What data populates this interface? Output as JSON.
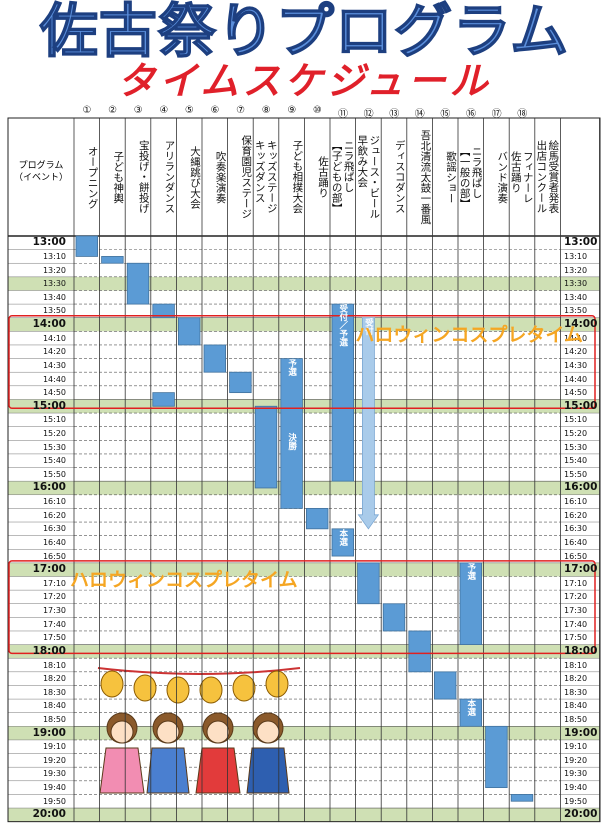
{
  "header": {
    "title": "佐古祭りプログラム",
    "subtitle": "タイムスケジュール",
    "program_label": "プログラム\n（イベント）"
  },
  "events": [
    {
      "number": "①",
      "name": "オープニング",
      "sessions": [
        {
          "start": "13:00",
          "end": "13:15"
        }
      ]
    },
    {
      "number": "②",
      "name": "子ども神輿",
      "sessions": [
        {
          "start": "13:15",
          "end": "13:20"
        }
      ]
    },
    {
      "number": "③",
      "name": "宝投げ・餅投げ",
      "sessions": [
        {
          "start": "13:20",
          "end": "13:50"
        }
      ]
    },
    {
      "number": "④",
      "name": "アリランダンス",
      "sessions": [
        {
          "start": "13:50",
          "end": "14:00"
        },
        {
          "start": "14:55",
          "end": "15:05"
        }
      ]
    },
    {
      "number": "⑤",
      "name": "大縄跳び大会",
      "sessions": [
        {
          "start": "14:00",
          "end": "14:20"
        }
      ]
    },
    {
      "number": "⑥",
      "name": "吹奏楽演奏",
      "sessions": [
        {
          "start": "14:20",
          "end": "14:40"
        }
      ]
    },
    {
      "number": "⑦",
      "name": "保育園児ステージ",
      "sessions": [
        {
          "start": "14:40",
          "end": "14:55"
        }
      ]
    },
    {
      "number": "⑧",
      "name": "キッズステージ\nキッズダンス",
      "sessions": [
        {
          "start": "15:05",
          "end": "16:05"
        }
      ]
    },
    {
      "number": "⑨",
      "name": "子ども相撲大会",
      "sessions": [
        {
          "start": "14:30",
          "end": "16:20",
          "labels": [
            "予選",
            "決勝"
          ]
        }
      ]
    },
    {
      "number": "⑩",
      "name": "佐古踊り",
      "sessions": [
        {
          "start": "16:20",
          "end": "16:35"
        }
      ]
    },
    {
      "number": "⑪",
      "name": "ニラ飛ばし\n【子どもの部】",
      "sessions": [
        {
          "start": "13:50",
          "end": "16:00",
          "labels": [
            "受付／予選"
          ]
        },
        {
          "start": "16:35",
          "end": "16:55",
          "labels": [
            "本選"
          ]
        }
      ]
    },
    {
      "number": "⑫",
      "name": "ジュース・ビール\n早飲み大会",
      "sessions": [
        {
          "start": "14:00",
          "end": "16:35",
          "labels": [
            "受付"
          ],
          "shape": "arrow"
        },
        {
          "start": "17:00",
          "end": "17:30"
        }
      ]
    },
    {
      "number": "⑬",
      "name": "ディスコダンス",
      "sessions": [
        {
          "start": "17:30",
          "end": "17:50"
        }
      ]
    },
    {
      "number": "⑭",
      "name": "吾北清流太鼓一番風",
      "sessions": [
        {
          "start": "17:50",
          "end": "18:20"
        }
      ]
    },
    {
      "number": "⑮",
      "name": "歌謡ショー",
      "sessions": [
        {
          "start": "18:20",
          "end": "18:40"
        }
      ]
    },
    {
      "number": "⑯",
      "name": "ニラ飛ばし\n【一般の部】",
      "sessions": [
        {
          "start": "17:00",
          "end": "18:00",
          "labels": [
            "予選"
          ]
        },
        {
          "start": "18:40",
          "end": "19:00",
          "labels": [
            "本選"
          ]
        }
      ]
    },
    {
      "number": "⑰",
      "name": "バンド演奏",
      "sessions": [
        {
          "start": "19:00",
          "end": "19:45"
        }
      ]
    },
    {
      "number": "⑱",
      "name": "フィナーレ\n佐古踊り",
      "sessions": [
        {
          "start": "19:50",
          "end": "19:55"
        }
      ]
    },
    {
      "name": "絵馬受賞者発表\n出店コンクール",
      "sessions": []
    }
  ],
  "rows": [
    {
      "time": "13:00",
      "highlight": false
    },
    {
      "time": "13:10",
      "highlight": false
    },
    {
      "time": "13:20",
      "highlight": false
    },
    {
      "time": "13:30",
      "highlight": true
    },
    {
      "time": "13:40",
      "highlight": false
    },
    {
      "time": "13:50",
      "highlight": false
    },
    {
      "time": "14:00",
      "highlight": true
    },
    {
      "time": "14:10",
      "highlight": false
    },
    {
      "time": "14:20",
      "highlight": false
    },
    {
      "time": "14:30",
      "highlight": false
    },
    {
      "time": "14:40",
      "highlight": false
    },
    {
      "time": "14:50",
      "highlight": false
    },
    {
      "time": "15:00",
      "highlight": true
    },
    {
      "time": "15:10",
      "highlight": false
    },
    {
      "time": "15:20",
      "highlight": false
    },
    {
      "time": "15:30",
      "highlight": false
    },
    {
      "time": "15:40",
      "highlight": false
    },
    {
      "time": "15:50",
      "highlight": false
    },
    {
      "time": "16:00",
      "highlight": true
    },
    {
      "time": "16:10",
      "highlight": false
    },
    {
      "time": "16:20",
      "highlight": false
    },
    {
      "time": "16:30",
      "highlight": false
    },
    {
      "time": "16:40",
      "highlight": false
    },
    {
      "time": "16:50",
      "highlight": false
    },
    {
      "time": "17:00",
      "highlight": true
    },
    {
      "time": "17:10",
      "highlight": false
    },
    {
      "time": "17:20",
      "highlight": false
    },
    {
      "time": "17:30",
      "highlight": false
    },
    {
      "time": "17:40",
      "highlight": false
    },
    {
      "time": "17:50",
      "highlight": false
    },
    {
      "time": "18:00",
      "highlight": true
    },
    {
      "time": "18:10",
      "highlight": false
    },
    {
      "time": "18:20",
      "highlight": false
    },
    {
      "time": "18:30",
      "highlight": false
    },
    {
      "time": "18:40",
      "highlight": false
    },
    {
      "time": "18:50",
      "highlight": false
    },
    {
      "time": "19:00",
      "highlight": true
    },
    {
      "time": "19:10",
      "highlight": false
    },
    {
      "time": "19:20",
      "highlight": false
    },
    {
      "time": "19:30",
      "highlight": false
    },
    {
      "time": "19:40",
      "highlight": false
    },
    {
      "time": "19:50",
      "highlight": false
    },
    {
      "time": "20:00",
      "highlight": true
    }
  ],
  "highlights": [
    {
      "text": "ハロウィンコスプレタイム",
      "start": "14:00",
      "end": "15:05",
      "text_side": "right"
    },
    {
      "text": "ハロウィンコスプレタイム",
      "start": "17:00",
      "end": "18:05",
      "text_side": "left"
    }
  ]
}
